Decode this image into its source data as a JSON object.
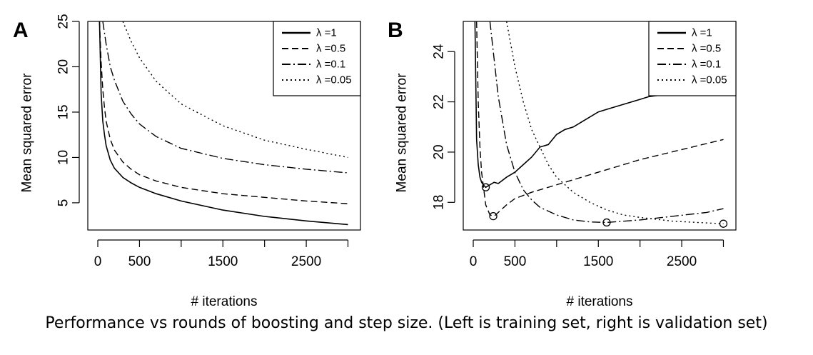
{
  "caption": "Performance vs rounds of boosting and step size. (Left is training set, right is validation set)",
  "chart_data": [
    {
      "panel_label": "A",
      "type": "line",
      "xlabel": "# iterations",
      "ylabel": "Mean squared error",
      "xlim": [
        -120,
        3150
      ],
      "ylim": [
        2,
        25
      ],
      "xticks": [
        0,
        500,
        1000,
        1500,
        2000,
        2500,
        3000
      ],
      "xtick_labels": [
        "0",
        "500",
        "",
        "1500",
        "",
        "2500",
        ""
      ],
      "yticks": [
        5,
        10,
        15,
        20,
        25
      ],
      "ytick_labels": [
        "5",
        "10",
        "15",
        "20",
        "25"
      ],
      "grid": false,
      "legend_position": "top-right",
      "series": [
        {
          "name": "λ =1",
          "style": "solid",
          "x": [
            20,
            40,
            60,
            80,
            100,
            150,
            200,
            300,
            400,
            500,
            700,
            1000,
            1500,
            2000,
            2500,
            3000
          ],
          "y": [
            25,
            17,
            14,
            12.5,
            11.3,
            9.7,
            8.8,
            7.8,
            7.2,
            6.7,
            6,
            5.2,
            4.2,
            3.5,
            3,
            2.6
          ]
        },
        {
          "name": "λ =0.5",
          "style": "dashed",
          "x": [
            20,
            40,
            60,
            80,
            100,
            150,
            200,
            300,
            400,
            500,
            700,
            1000,
            1500,
            2000,
            2500,
            3000
          ],
          "y": [
            25,
            20.5,
            17.5,
            15.5,
            14,
            12,
            10.8,
            9.5,
            8.7,
            8.1,
            7.4,
            6.7,
            6,
            5.6,
            5.2,
            4.9
          ]
        },
        {
          "name": "λ =0.1",
          "style": "dotdash",
          "x": [
            60,
            100,
            150,
            200,
            300,
            400,
            500,
            700,
            1000,
            1500,
            2000,
            2500,
            3000
          ],
          "y": [
            25,
            22.5,
            20,
            18.5,
            16.2,
            14.8,
            13.7,
            12.3,
            11,
            9.9,
            9.2,
            8.7,
            8.3
          ]
        },
        {
          "name": "λ =0.05",
          "style": "dotted",
          "x": [
            300,
            400,
            500,
            700,
            1000,
            1500,
            2000,
            2500,
            3000
          ],
          "y": [
            25,
            22.8,
            21,
            18.4,
            15.9,
            13.5,
            11.9,
            10.9,
            10
          ]
        }
      ]
    },
    {
      "panel_label": "B",
      "type": "line",
      "xlabel": "# iterations",
      "ylabel": "Mean squared error",
      "xlim": [
        -120,
        3150
      ],
      "ylim": [
        16.9,
        25.2
      ],
      "xticks": [
        0,
        500,
        1000,
        1500,
        2000,
        2500,
        3000
      ],
      "xtick_labels": [
        "0",
        "500",
        "",
        "1500",
        "",
        "2500",
        ""
      ],
      "yticks": [
        18,
        20,
        22,
        24
      ],
      "ytick_labels": [
        "18",
        "20",
        "22",
        "24"
      ],
      "grid": false,
      "legend_position": "top-right",
      "series": [
        {
          "name": "λ =1",
          "style": "solid",
          "x": [
            20,
            40,
            60,
            80,
            100,
            120,
            150,
            200,
            250,
            300,
            400,
            500,
            600,
            700,
            800,
            900,
            1000,
            1100,
            1200,
            1300,
            1400,
            1500,
            1600,
            1700,
            1800,
            1900,
            2000,
            2100,
            2200,
            2300,
            2400
          ],
          "y": [
            25.2,
            20.5,
            19.5,
            19,
            18.8,
            18.7,
            18.6,
            18.7,
            18.8,
            18.75,
            19,
            19.2,
            19.5,
            19.8,
            20.2,
            20.3,
            20.7,
            20.9,
            21,
            21.2,
            21.4,
            21.6,
            21.7,
            21.8,
            21.9,
            22,
            22.1,
            22.2,
            22.25,
            22.3,
            22.4
          ]
        },
        {
          "name": "λ =0.5",
          "style": "dashed",
          "x": [
            40,
            60,
            80,
            100,
            150,
            200,
            250,
            300,
            400,
            500,
            700,
            1000,
            1500,
            2000,
            2500,
            3000
          ],
          "y": [
            25.2,
            22,
            20.2,
            19.2,
            17.9,
            17.5,
            17.45,
            17.6,
            17.9,
            18.15,
            18.4,
            18.7,
            19.2,
            19.7,
            20.1,
            20.5
          ]
        },
        {
          "name": "λ =0.1",
          "style": "dotdash",
          "x": [
            200,
            300,
            400,
            500,
            600,
            700,
            800,
            1000,
            1200,
            1400,
            1600,
            1800,
            2000,
            2400,
            2800,
            3000
          ],
          "y": [
            25.2,
            22.2,
            20.3,
            19.2,
            18.5,
            18.1,
            17.8,
            17.5,
            17.3,
            17.22,
            17.2,
            17.25,
            17.3,
            17.45,
            17.6,
            17.75
          ]
        },
        {
          "name": "λ =0.05",
          "style": "dotted",
          "x": [
            400,
            500,
            600,
            700,
            800,
            900,
            1000,
            1200,
            1400,
            1600,
            1800,
            2000,
            2400,
            2800,
            3000
          ],
          "y": [
            25.2,
            23.4,
            22,
            20.9,
            20.2,
            19.5,
            19,
            18.4,
            18,
            17.7,
            17.5,
            17.4,
            17.25,
            17.18,
            17.15
          ]
        }
      ],
      "minima_markers": [
        {
          "series": "λ =1",
          "x": 150,
          "y": 18.6
        },
        {
          "series": "λ =0.5",
          "x": 240,
          "y": 17.45
        },
        {
          "series": "λ =0.1",
          "x": 1600,
          "y": 17.2
        },
        {
          "series": "λ =0.05",
          "x": 3000,
          "y": 17.15
        }
      ]
    }
  ]
}
